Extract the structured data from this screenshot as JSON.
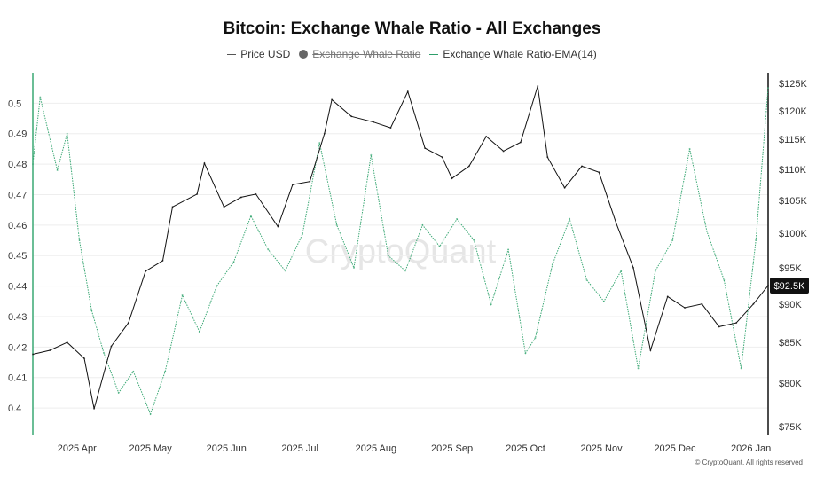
{
  "header": {
    "title": "Bitcoin: Exchange Whale Ratio - All Exchanges"
  },
  "legend": [
    {
      "label": "Price USD",
      "color": "#555555",
      "style": "line",
      "hidden": false
    },
    {
      "label": "Exchange Whale Ratio",
      "color": "#666666",
      "style": "dot",
      "hidden": true
    },
    {
      "label": "Exchange Whale Ratio-EMA(14)",
      "color": "#2e9e6a",
      "style": "line",
      "hidden": false
    }
  ],
  "watermark": "CryptoQuant",
  "copyright": "© CryptoQuant. All rights reserved",
  "price_badge": "$92.5K",
  "colors": {
    "price": "#111111",
    "ema": "#3aa874",
    "axis_left": "#3aa874",
    "axis_right": "#111111",
    "grid": "#eeeeee",
    "badge_bg": "#111111"
  },
  "chart_data": {
    "type": "line",
    "x_range": [
      "2025-03-14",
      "2026-01-08"
    ],
    "x_ticks": [
      "2025 Apr",
      "2025 May",
      "2025 Jun",
      "2025 Jul",
      "2025 Aug",
      "2025 Sep",
      "2025 Oct",
      "2025 Nov",
      "2025 Dec",
      "2026 Jan"
    ],
    "left_axis": {
      "ylim": [
        0.391,
        0.51
      ],
      "ticks": [
        "0.4",
        "0.41",
        "0.42",
        "0.43",
        "0.44",
        "0.45",
        "0.46",
        "0.47",
        "0.48",
        "0.49",
        "0.5"
      ]
    },
    "right_axis": {
      "scale": "log",
      "ylim": [
        74000,
        127000
      ],
      "ticks": [
        "$75K",
        "$80K",
        "$85K",
        "$90K",
        "$95K",
        "$100K",
        "$105K",
        "$110K",
        "$115K",
        "$120K",
        "$125K"
      ]
    },
    "series": [
      {
        "name": "Price USD",
        "axis": "right",
        "x": [
          "2025-03-14",
          "2025-03-21",
          "2025-03-28",
          "2025-04-04",
          "2025-04-08",
          "2025-04-15",
          "2025-04-22",
          "2025-04-29",
          "2025-05-06",
          "2025-05-10",
          "2025-05-20",
          "2025-05-23",
          "2025-05-31",
          "2025-06-07",
          "2025-06-13",
          "2025-06-22",
          "2025-06-28",
          "2025-07-05",
          "2025-07-11",
          "2025-07-14",
          "2025-07-22",
          "2025-07-31",
          "2025-08-07",
          "2025-08-14",
          "2025-08-21",
          "2025-08-28",
          "2025-09-01",
          "2025-09-08",
          "2025-09-15",
          "2025-09-22",
          "2025-09-29",
          "2025-10-06",
          "2025-10-10",
          "2025-10-17",
          "2025-10-24",
          "2025-10-31",
          "2025-11-07",
          "2025-11-14",
          "2025-11-21",
          "2025-11-28",
          "2025-12-05",
          "2025-12-12",
          "2025-12-19",
          "2025-12-26",
          "2026-01-02",
          "2026-01-08"
        ],
        "values": [
          83500,
          84000,
          85000,
          83000,
          77000,
          84500,
          87500,
          94500,
          96000,
          104000,
          106000,
          111000,
          104000,
          105500,
          106000,
          101000,
          107500,
          108000,
          116000,
          122000,
          119000,
          118000,
          117000,
          123500,
          113500,
          112000,
          108500,
          110500,
          115500,
          113000,
          114500,
          124500,
          112000,
          107000,
          110500,
          109500,
          101500,
          95000,
          84000,
          91000,
          89500,
          90000,
          87000,
          87500,
          90000,
          92500
        ]
      },
      {
        "name": "Exchange Whale Ratio-EMA(14)",
        "axis": "left",
        "x": [
          "2025-03-14",
          "2025-03-17",
          "2025-03-24",
          "2025-03-28",
          "2025-04-02",
          "2025-04-07",
          "2025-04-12",
          "2025-04-18",
          "2025-04-24",
          "2025-05-01",
          "2025-05-07",
          "2025-05-14",
          "2025-05-21",
          "2025-05-28",
          "2025-06-04",
          "2025-06-11",
          "2025-06-18",
          "2025-06-25",
          "2025-07-02",
          "2025-07-09",
          "2025-07-16",
          "2025-07-23",
          "2025-07-30",
          "2025-08-06",
          "2025-08-13",
          "2025-08-20",
          "2025-08-27",
          "2025-09-03",
          "2025-09-10",
          "2025-09-17",
          "2025-09-24",
          "2025-10-01",
          "2025-10-05",
          "2025-10-12",
          "2025-10-19",
          "2025-10-26",
          "2025-11-02",
          "2025-11-09",
          "2025-11-16",
          "2025-11-23",
          "2025-11-30",
          "2025-12-07",
          "2025-12-14",
          "2025-12-21",
          "2025-12-28",
          "2026-01-03",
          "2026-01-08"
        ],
        "values": [
          0.48,
          0.502,
          0.478,
          0.49,
          0.455,
          0.432,
          0.418,
          0.405,
          0.412,
          0.398,
          0.412,
          0.437,
          0.425,
          0.44,
          0.448,
          0.463,
          0.452,
          0.445,
          0.457,
          0.487,
          0.46,
          0.446,
          0.483,
          0.45,
          0.445,
          0.46,
          0.453,
          0.462,
          0.455,
          0.434,
          0.452,
          0.418,
          0.423,
          0.447,
          0.462,
          0.442,
          0.435,
          0.445,
          0.413,
          0.445,
          0.455,
          0.485,
          0.458,
          0.442,
          0.413,
          0.455,
          0.505
        ]
      }
    ]
  }
}
